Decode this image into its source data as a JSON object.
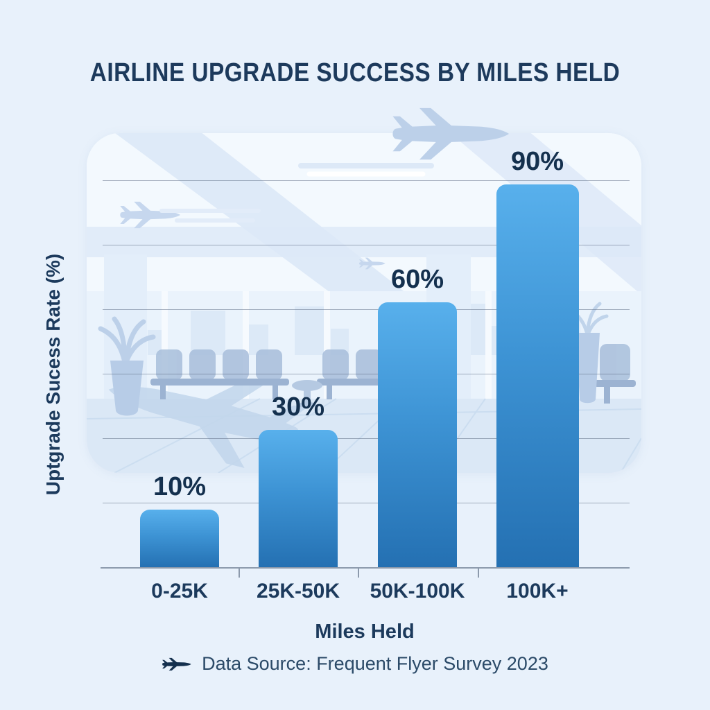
{
  "title": "AIRLINE UPGRADE SUCCESS BY MILES HELD",
  "chart_data": {
    "type": "bar",
    "categories": [
      "0-25K",
      "25K-50K",
      "50K-100K",
      "100K+"
    ],
    "values": [
      10,
      30,
      60,
      90
    ],
    "value_labels": [
      "10%",
      "30%",
      "60%",
      "90%"
    ],
    "title": "AIRLINE UPGRADE SUCCESS BY MILES HELD",
    "xlabel": "Miles Held",
    "ylabel": "Uptgrade Sucess Rate (%)",
    "ylim": [
      0,
      100
    ],
    "grid": true,
    "legend": "none",
    "bar_gradient_top": "#58b0ec",
    "bar_gradient_bottom": "#2470b2",
    "background_theme": "airport-terminal-illustration"
  },
  "footer": {
    "icon": "plane-icon",
    "text": "Data Source: Frequent Flyer Survey 2023"
  },
  "colors": {
    "page_background": "#e8f1fb",
    "card_background": "#eef5fc",
    "heading_text": "#1d3a5c",
    "value_text": "#14304e",
    "gridline": "#60708680",
    "axis_line": "#8c9aac",
    "illustration_blue": "#c6d7ee"
  }
}
